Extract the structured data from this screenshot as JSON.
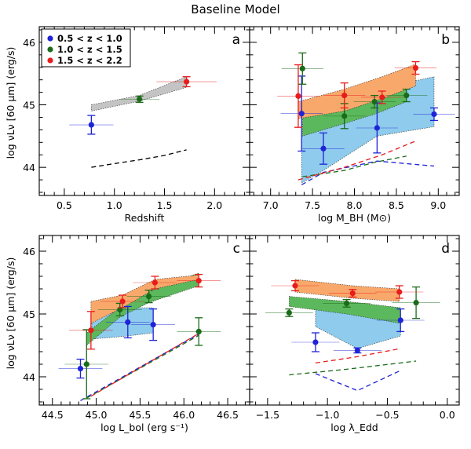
{
  "chart_data": {
    "title": "Baseline Model",
    "ylabel": "log νLν [60 μm] (erg/s)",
    "legend": {
      "placement": "top-left of panel a",
      "entries": [
        {
          "label": "0.5 < z < 1.0",
          "color": "#1f23d6"
        },
        {
          "label": "1.0 < z < 1.5",
          "color": "#1a6b1a"
        },
        {
          "label": "1.5 < z < 2.2",
          "color": "#e81c1c"
        }
      ]
    },
    "panels": [
      {
        "id": "a",
        "label": "a",
        "type": "scatter",
        "xlabel": "Redshift",
        "xlim": [
          0.25,
          2.35
        ],
        "ylim": [
          43.55,
          46.25
        ],
        "xticks": [
          0.5,
          1.0,
          1.5,
          2.0
        ],
        "xticklabels": [
          "0.5",
          "1.0",
          "1.5",
          "2.0"
        ],
        "yticks": [
          44,
          45,
          46
        ],
        "yticklabels": [
          "44",
          "45",
          "46"
        ],
        "points": [
          {
            "x": 0.77,
            "y": 44.68,
            "xerr": 0.22,
            "yerr": 0.15,
            "color": "#1f23d6"
          },
          {
            "x": 1.25,
            "y": 45.09,
            "xerr": 0.2,
            "yerr": 0.05,
            "color": "#1a6b1a"
          },
          {
            "x": 1.72,
            "y": 45.37,
            "xerr": 0.3,
            "yerr": 0.08,
            "color": "#e81c1c"
          }
        ],
        "bands": [
          {
            "color": "#c4c4c4",
            "x": [
              0.77,
              1.25,
              1.72
            ],
            "lower": [
              44.9,
              45.06,
              45.28
            ],
            "upper": [
              45.0,
              45.15,
              45.45
            ]
          }
        ],
        "dashed": [
          {
            "color": "#000000",
            "x": [
              0.77,
              1.0,
              1.25,
              1.5,
              1.72
            ],
            "y": [
              44.0,
              44.06,
              44.12,
              44.19,
              44.28
            ]
          }
        ]
      },
      {
        "id": "b",
        "label": "b",
        "type": "scatter",
        "xlabel": "log M_BH (M⊙)",
        "xlim": [
          6.75,
          9.25
        ],
        "ylim": [
          43.55,
          46.25
        ],
        "xticks": [
          7.0,
          7.5,
          8.0,
          8.5,
          9.0
        ],
        "xticklabels": [
          "7.0",
          "7.5",
          "8.0",
          "8.5",
          "9.0"
        ],
        "yticks": [
          44,
          45,
          46
        ],
        "yticklabels": [
          "44",
          "45",
          "46"
        ],
        "points": [
          {
            "x": 7.37,
            "y": 44.86,
            "xerr": 0.25,
            "yerr": 0.6,
            "color": "#1f23d6"
          },
          {
            "x": 7.63,
            "y": 44.3,
            "xerr": 0.25,
            "yerr": 0.25,
            "color": "#1f23d6"
          },
          {
            "x": 8.27,
            "y": 44.63,
            "xerr": 0.25,
            "yerr": 0.4,
            "color": "#1f23d6"
          },
          {
            "x": 8.95,
            "y": 44.85,
            "xerr": 0.25,
            "yerr": 0.1,
            "color": "#1f23d6"
          },
          {
            "x": 7.38,
            "y": 45.58,
            "xerr": 0.25,
            "yerr": 0.25,
            "color": "#1a6b1a"
          },
          {
            "x": 7.88,
            "y": 44.82,
            "xerr": 0.25,
            "yerr": 0.2,
            "color": "#1a6b1a"
          },
          {
            "x": 8.24,
            "y": 45.05,
            "xerr": 0.25,
            "yerr": 0.1,
            "color": "#1a6b1a"
          },
          {
            "x": 8.62,
            "y": 45.15,
            "xerr": 0.25,
            "yerr": 0.1,
            "color": "#1a6b1a"
          },
          {
            "x": 7.33,
            "y": 45.14,
            "xerr": 0.25,
            "yerr": 0.5,
            "color": "#e81c1c"
          },
          {
            "x": 7.88,
            "y": 45.15,
            "xerr": 0.25,
            "yerr": 0.2,
            "color": "#e81c1c"
          },
          {
            "x": 8.33,
            "y": 45.12,
            "xerr": 0.25,
            "yerr": 0.1,
            "color": "#e81c1c"
          },
          {
            "x": 8.73,
            "y": 45.59,
            "xerr": 0.25,
            "yerr": 0.1,
            "color": "#e81c1c"
          }
        ],
        "bands": [
          {
            "color": "#8ecbec",
            "x": [
              7.37,
              7.63,
              8.27,
              8.95
            ],
            "lower": [
              43.75,
              43.95,
              44.5,
              44.65
            ],
            "upper": [
              44.5,
              44.85,
              45.25,
              45.45
            ]
          },
          {
            "color": "#5cb85c",
            "x": [
              7.38,
              7.88,
              8.24,
              8.62
            ],
            "lower": [
              44.5,
              44.7,
              44.85,
              45.05
            ],
            "upper": [
              44.8,
              45.0,
              45.15,
              45.3
            ]
          },
          {
            "color": "#f9a86b",
            "x": [
              7.33,
              7.88,
              8.33,
              8.73
            ],
            "lower": [
              44.78,
              44.9,
              45.1,
              45.3
            ],
            "upper": [
              45.05,
              45.25,
              45.45,
              45.65
            ]
          }
        ],
        "dashed": [
          {
            "color": "#1f23d6",
            "x": [
              7.37,
              7.63,
              8.27,
              8.95
            ],
            "y": [
              43.72,
              43.92,
              44.1,
              44.02
            ]
          },
          {
            "color": "#1a6b1a",
            "x": [
              7.38,
              7.88,
              8.24,
              8.62
            ],
            "y": [
              43.85,
              43.95,
              44.08,
              44.18
            ]
          },
          {
            "color": "#e81c1c",
            "x": [
              7.33,
              7.88,
              8.33,
              8.73
            ],
            "y": [
              43.8,
              44.0,
              44.2,
              44.42
            ]
          }
        ]
      },
      {
        "id": "c",
        "label": "c",
        "type": "scatter",
        "xlabel": "log L_bol (erg s⁻¹)",
        "xlim": [
          44.35,
          46.75
        ],
        "ylim": [
          43.55,
          46.25
        ],
        "xticks": [
          44.5,
          45.0,
          45.5,
          46.0,
          46.5
        ],
        "xticklabels": [
          "44.5",
          "45.0",
          "45.5",
          "46.0",
          "46.5"
        ],
        "yticks": [
          44,
          45,
          46
        ],
        "yticklabels": [
          "44",
          "45",
          "46"
        ],
        "points": [
          {
            "x": 44.82,
            "y": 44.13,
            "xerr": 0.25,
            "yerr": 0.15,
            "color": "#1f23d6"
          },
          {
            "x": 45.36,
            "y": 44.87,
            "xerr": 0.25,
            "yerr": 0.25,
            "color": "#1f23d6"
          },
          {
            "x": 45.65,
            "y": 44.83,
            "xerr": 0.25,
            "yerr": 0.25,
            "color": "#1f23d6"
          },
          {
            "x": 44.89,
            "y": 44.2,
            "xerr": 0.25,
            "yerr": 0.55,
            "color": "#1a6b1a"
          },
          {
            "x": 45.27,
            "y": 45.07,
            "xerr": 0.25,
            "yerr": 0.1,
            "color": "#1a6b1a"
          },
          {
            "x": 45.6,
            "y": 45.28,
            "xerr": 0.25,
            "yerr": 0.1,
            "color": "#1a6b1a"
          },
          {
            "x": 46.17,
            "y": 44.72,
            "xerr": 0.25,
            "yerr": 0.22,
            "color": "#1a6b1a"
          },
          {
            "x": 44.94,
            "y": 44.74,
            "xerr": 0.25,
            "yerr": 0.3,
            "color": "#e81c1c"
          },
          {
            "x": 45.3,
            "y": 45.2,
            "xerr": 0.25,
            "yerr": 0.1,
            "color": "#e81c1c"
          },
          {
            "x": 45.67,
            "y": 45.5,
            "xerr": 0.25,
            "yerr": 0.1,
            "color": "#e81c1c"
          },
          {
            "x": 46.17,
            "y": 45.53,
            "xerr": 0.25,
            "yerr": 0.1,
            "color": "#e81c1c"
          }
        ],
        "bands": [
          {
            "color": "#8ecbec",
            "x": [
              44.95,
              45.36,
              45.65
            ],
            "lower": [
              44.6,
              44.65,
              44.7
            ],
            "upper": [
              44.9,
              45.1,
              45.1
            ]
          },
          {
            "color": "#5cb85c",
            "x": [
              44.89,
              45.27,
              45.6,
              46.17
            ],
            "lower": [
              44.5,
              44.95,
              45.18,
              45.45
            ],
            "upper": [
              44.7,
              45.1,
              45.4,
              45.65
            ]
          },
          {
            "color": "#f9a86b",
            "x": [
              44.94,
              45.3,
              45.67,
              46.17
            ],
            "lower": [
              44.85,
              45.1,
              45.4,
              45.55
            ],
            "upper": [
              45.2,
              45.3,
              45.55,
              45.62
            ]
          }
        ],
        "dashed": [
          {
            "color": "#1f23d6",
            "x": [
              44.82,
              46.17
            ],
            "y": [
              43.62,
              44.68
            ]
          },
          {
            "color": "#1a6b1a",
            "x": [
              44.89,
              46.17
            ],
            "y": [
              43.66,
              44.66
            ]
          },
          {
            "color": "#e81c1c",
            "x": [
              44.94,
              46.17
            ],
            "y": [
              43.69,
              44.69
            ]
          }
        ]
      },
      {
        "id": "d",
        "label": "d",
        "type": "scatter",
        "xlabel": "log λ_Edd",
        "xlim": [
          -1.65,
          0.1
        ],
        "ylim": [
          43.55,
          46.25
        ],
        "xticks": [
          -1.5,
          -1.0,
          -0.5,
          0.0
        ],
        "xticklabels": [
          "−1.5",
          "−1.0",
          "−0.5",
          "0.0"
        ],
        "yticks": [
          44,
          45,
          46
        ],
        "yticklabels": [
          "44",
          "45",
          "46"
        ],
        "points": [
          {
            "x": -1.1,
            "y": 44.55,
            "xerr": 0.2,
            "yerr": 0.15,
            "color": "#1f23d6"
          },
          {
            "x": -0.75,
            "y": 44.42,
            "xerr": 0.2,
            "yerr": 0.04,
            "color": "#1f23d6"
          },
          {
            "x": -0.39,
            "y": 44.9,
            "xerr": 0.2,
            "yerr": 0.18,
            "color": "#1f23d6"
          },
          {
            "x": -1.32,
            "y": 45.02,
            "xerr": 0.2,
            "yerr": 0.06,
            "color": "#1a6b1a"
          },
          {
            "x": -0.84,
            "y": 45.17,
            "xerr": 0.2,
            "yerr": 0.06,
            "color": "#1a6b1a"
          },
          {
            "x": -0.26,
            "y": 45.18,
            "xerr": 0.2,
            "yerr": 0.25,
            "color": "#1a6b1a"
          },
          {
            "x": -1.27,
            "y": 45.45,
            "xerr": 0.2,
            "yerr": 0.08,
            "color": "#e81c1c"
          },
          {
            "x": -0.79,
            "y": 45.33,
            "xerr": 0.2,
            "yerr": 0.06,
            "color": "#e81c1c"
          },
          {
            "x": -0.4,
            "y": 45.35,
            "xerr": 0.2,
            "yerr": 0.1,
            "color": "#e81c1c"
          }
        ],
        "bands": [
          {
            "color": "#8ecbec",
            "x": [
              -1.1,
              -0.75,
              -0.39
            ],
            "lower": [
              44.8,
              44.45,
              44.65
            ],
            "upper": [
              45.1,
              45.1,
              45.05
            ]
          },
          {
            "color": "#5cb85c",
            "x": [
              -1.32,
              -0.84,
              -0.39
            ],
            "lower": [
              45.12,
              45.0,
              44.85
            ],
            "upper": [
              45.28,
              45.2,
              45.1
            ]
          },
          {
            "color": "#f9a86b",
            "x": [
              -1.27,
              -0.79,
              -0.4
            ],
            "lower": [
              45.35,
              45.25,
              45.2
            ],
            "upper": [
              45.55,
              45.45,
              45.4
            ]
          }
        ],
        "dashed": [
          {
            "color": "#1f23d6",
            "x": [
              -1.1,
              -0.75,
              -0.39
            ],
            "y": [
              44.05,
              43.78,
              44.1
            ]
          },
          {
            "color": "#1a6b1a",
            "x": [
              -1.32,
              -0.84,
              -0.26
            ],
            "y": [
              44.03,
              44.12,
              44.25
            ]
          },
          {
            "color": "#e81c1c",
            "x": [
              -1.1,
              -0.75,
              -0.39
            ],
            "y": [
              44.22,
              44.32,
              44.45
            ]
          }
        ]
      }
    ]
  }
}
